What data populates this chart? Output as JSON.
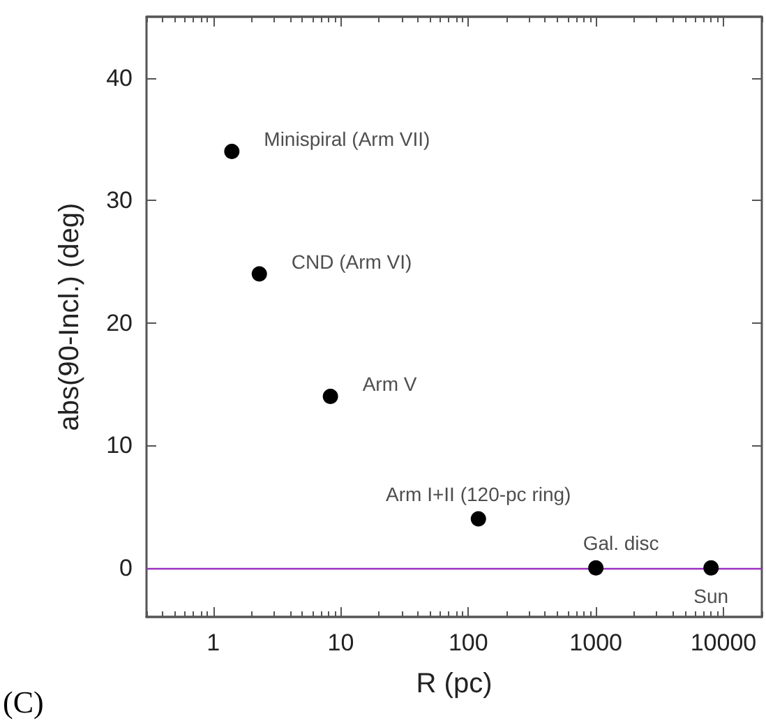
{
  "chart_data": {
    "type": "scatter",
    "xlabel": "R (pc)",
    "ylabel": "abs(90-Incl.) (deg)",
    "x": [
      1.4,
      2.3,
      8.3,
      120,
      1000,
      8000
    ],
    "series": [
      {
        "color": "#000000",
        "values": [
          34,
          24,
          14,
          4,
          0,
          0
        ]
      }
    ],
    "log": "x",
    "marker": "circle",
    "grid": false,
    "xlim": [
      0.3,
      20000
    ],
    "xticks": [
      1,
      10,
      100,
      1000,
      10000
    ],
    "ylim": [
      -4,
      45
    ],
    "yticks": [
      0,
      10,
      20,
      30,
      40
    ],
    "ref_lines": [
      {
        "axis": "y",
        "value": 0,
        "color": "#9b30c0"
      }
    ],
    "annotations": [
      {
        "text": "Minispiral (Arm VII)",
        "x": 1.4,
        "y": 34
      },
      {
        "text": "CND (Arm VI)",
        "x": 2.3,
        "y": 24
      },
      {
        "text": "Arm V",
        "x": 8.3,
        "y": 14
      },
      {
        "text": "Arm I+II (120-pc ring)",
        "x": 120,
        "y": 4
      },
      {
        "text": "Gal. disc",
        "x": 1000,
        "y": 0
      },
      {
        "text": "Sun",
        "x": 8000,
        "y": 0
      },
      "(C)"
    ]
  }
}
